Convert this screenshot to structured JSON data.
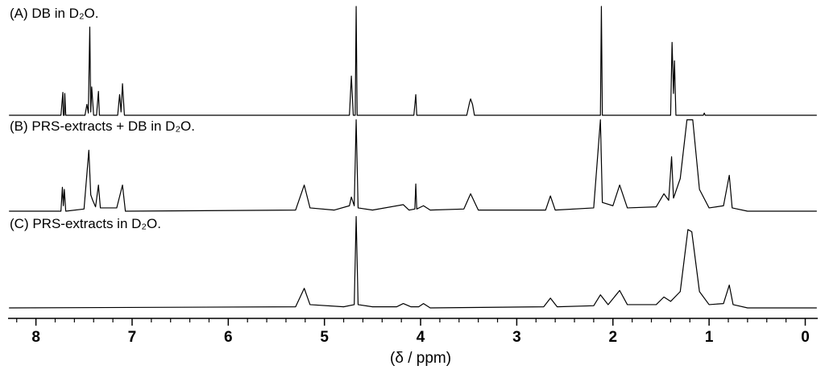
{
  "chart_data": {
    "type": "line",
    "xlabel": "(δ / ppm)",
    "xlim": [
      8.29,
      -0.13
    ],
    "ylim": [
      0,
      100
    ],
    "xticks": [
      8,
      7,
      6,
      5,
      4,
      3,
      2,
      1,
      0
    ],
    "xminorticks": [
      8.2,
      7.8,
      7.6,
      7.4,
      7.2,
      6.8,
      6.6,
      6.4,
      6.2,
      5.8,
      5.6,
      5.4,
      5.2,
      4.8,
      4.6,
      4.4,
      4.2,
      3.8,
      3.6,
      3.4,
      3.2,
      2.8,
      2.6,
      2.4,
      2.2,
      1.8,
      1.6,
      1.4,
      1.2,
      0.8,
      0.6,
      0.4,
      0.2
    ],
    "series": [
      {
        "name": "(A) DB in D₂O.",
        "color": "#000000",
        "x": [
          8.28,
          7.74,
          7.72,
          7.715,
          7.705,
          7.7,
          7.69,
          7.49,
          7.47,
          7.455,
          7.44,
          7.43,
          7.42,
          7.4,
          7.37,
          7.35,
          7.34,
          7.15,
          7.13,
          7.115,
          7.1,
          7.08,
          4.74,
          4.72,
          4.7,
          4.68,
          4.67,
          4.66,
          4.07,
          4.05,
          4.04,
          3.52,
          3.49,
          3.48,
          3.46,
          3.44,
          2.13,
          2.12,
          2.11,
          1.4,
          1.385,
          1.37,
          1.36,
          1.345,
          1.06,
          1.05,
          1.04,
          -0.12
        ],
        "values": [
          0,
          0,
          21,
          0,
          0,
          20,
          0,
          0,
          10,
          2,
          81,
          3,
          26,
          0,
          0,
          22,
          0,
          0,
          19,
          3,
          29,
          0,
          0,
          36,
          0,
          0,
          100,
          0,
          0,
          19,
          0,
          0,
          12,
          15,
          10,
          0,
          0,
          100,
          0,
          0,
          67,
          20,
          50,
          0,
          0,
          2,
          0,
          0
        ]
      },
      {
        "name": "(B) PRS-extracts + DB in D₂O.",
        "color": "#000000",
        "x": [
          8.28,
          7.74,
          7.725,
          7.715,
          7.705,
          7.69,
          7.5,
          7.45,
          7.43,
          7.41,
          7.38,
          7.35,
          7.33,
          7.16,
          7.1,
          7.07,
          5.3,
          5.21,
          5.15,
          4.9,
          4.74,
          4.72,
          4.69,
          4.67,
          4.65,
          4.5,
          4.18,
          4.12,
          4.06,
          4.05,
          4.04,
          3.97,
          3.9,
          3.55,
          3.48,
          3.4,
          2.7,
          2.65,
          2.6,
          2.2,
          2.13,
          2.11,
          2.0,
          1.93,
          1.85,
          1.55,
          1.47,
          1.42,
          1.39,
          1.37,
          1.3,
          1.23,
          1.17,
          1.1,
          1.0,
          0.85,
          0.79,
          0.76,
          0.6,
          -0.12
        ],
        "values": [
          0,
          0,
          22,
          5,
          20,
          0,
          2,
          56,
          15,
          10,
          4,
          24,
          3,
          3,
          24,
          0,
          1,
          24,
          3,
          1,
          5,
          13,
          5,
          84,
          3,
          1,
          6,
          1,
          2,
          25,
          2,
          5,
          1,
          2,
          16,
          1,
          1,
          14,
          1,
          3,
          84,
          8,
          5,
          24,
          3,
          4,
          16,
          10,
          50,
          12,
          30,
          84,
          84,
          20,
          3,
          5,
          33,
          3,
          0,
          0
        ]
      },
      {
        "name": "(C) PRS-extracts in D₂O.",
        "color": "#000000",
        "x": [
          8.28,
          5.3,
          5.21,
          5.15,
          4.8,
          4.69,
          4.67,
          4.65,
          4.5,
          4.25,
          4.18,
          4.1,
          4.02,
          3.97,
          3.9,
          2.72,
          2.65,
          2.58,
          2.2,
          2.13,
          2.05,
          1.93,
          1.85,
          1.55,
          1.47,
          1.4,
          1.3,
          1.22,
          1.18,
          1.1,
          1.0,
          0.85,
          0.79,
          0.75,
          0.6,
          -0.12
        ],
        "values": [
          0,
          1,
          18,
          3,
          1,
          3,
          84,
          3,
          1,
          1,
          4,
          1,
          1,
          4,
          0,
          1,
          9,
          1,
          2,
          12,
          3,
          16,
          3,
          3,
          10,
          6,
          15,
          72,
          70,
          15,
          3,
          4,
          21,
          3,
          0,
          0
        ]
      }
    ]
  }
}
